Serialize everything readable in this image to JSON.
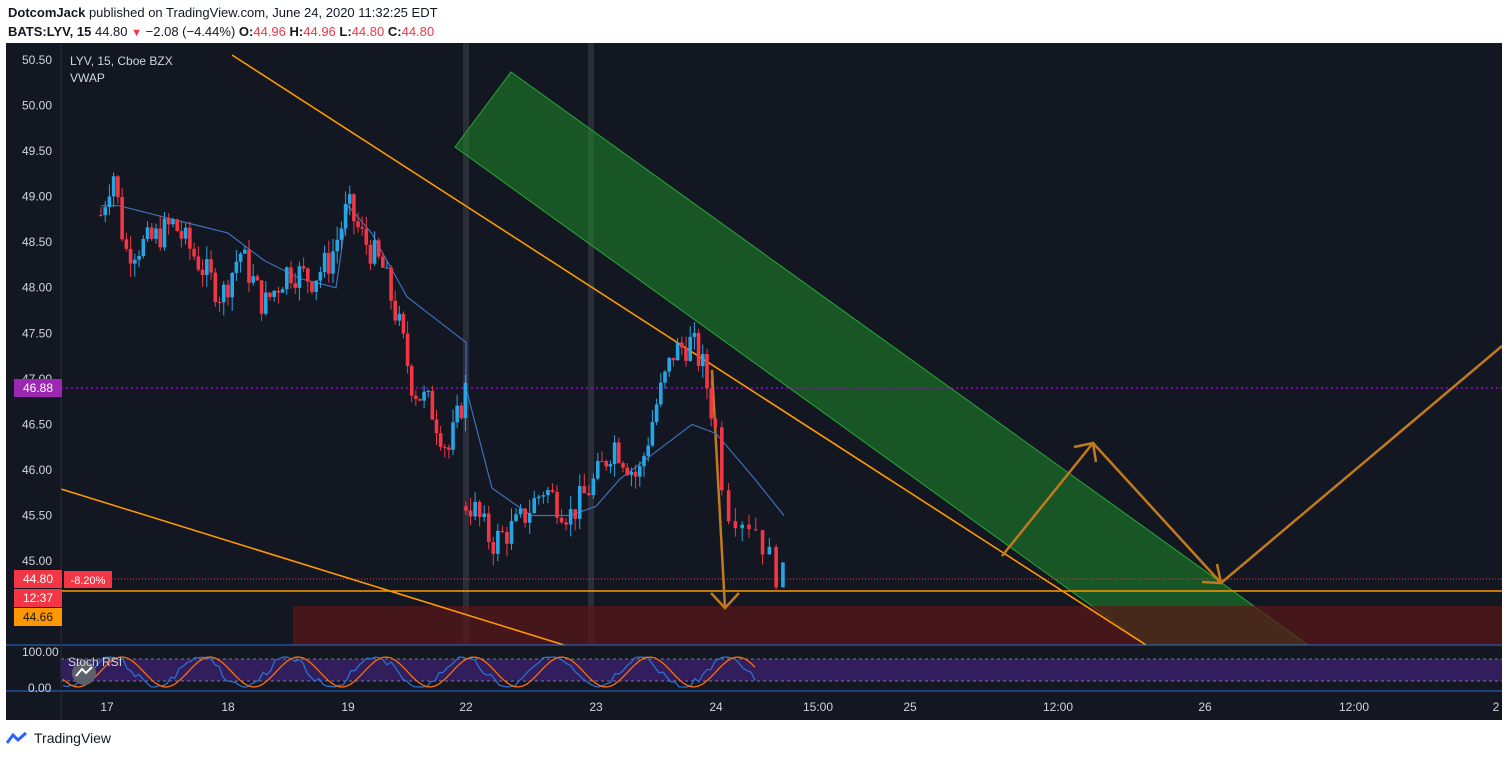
{
  "header": {
    "author": "DotcomJack",
    "published_text": "published on TradingView.com, June 24, 2020 11:32:25 EDT",
    "symbol": "BATS:LYV, 15",
    "last": "44.80",
    "change": "−2.08 (−4.44%)",
    "o_label": "O:",
    "o_value": "44.96",
    "h_label": "H:",
    "h_value": "44.96",
    "l_label": "L:",
    "l_value": "44.80",
    "c_label": "C:",
    "c_value": "44.80"
  },
  "legend": {
    "title": "LYV, 15, Cboe BZX",
    "indicator": "VWAP"
  },
  "stoch_label": "Stoch RSI",
  "badges": {
    "line_price": "46.88",
    "last_price": "44.80",
    "last_pct": "-8.20%",
    "countdown": "12:37",
    "support": "44.66"
  },
  "footer": {
    "brand": "TradingView"
  },
  "colors": {
    "background": "#131722",
    "up": "#26a5e4",
    "down": "#f23645",
    "trendline": "#ff9800",
    "channel": "#1f8a2a",
    "vwap": "#3f6fb6",
    "target_zone": "#5b1717",
    "arrows": "#c17a1c",
    "dotted_level": "#a000d6",
    "stoch_band": "#3b1f6d",
    "stoch_k": "#2a6fd1",
    "stoch_d": "#ff6d00"
  },
  "chart_data": {
    "type": "candlestick",
    "symbol": "LYV",
    "interval": "15",
    "exchange": "Cboe BZX",
    "y_ticks": [
      "50.50",
      "50.00",
      "49.50",
      "49.00",
      "48.50",
      "48.00",
      "47.50",
      "47.00",
      "46.50",
      "46.00",
      "45.50",
      "45.00"
    ],
    "x_ticks": [
      "17",
      "18",
      "19",
      "22",
      "23",
      "24",
      "15:00",
      "25",
      "12:00",
      "26",
      "12:00",
      "2"
    ],
    "ylim": [
      44.3,
      50.75
    ],
    "price_path": [
      {
        "day": 16.95,
        "price": 48.8
      },
      {
        "day": 17.05,
        "price": 49.3
      },
      {
        "day": 17.15,
        "price": 48.4
      },
      {
        "day": 17.35,
        "price": 48.5
      },
      {
        "day": 17.55,
        "price": 48.7
      },
      {
        "day": 17.75,
        "price": 48.3
      },
      {
        "day": 17.95,
        "price": 47.9
      },
      {
        "day": 18.1,
        "price": 48.4
      },
      {
        "day": 18.3,
        "price": 47.8
      },
      {
        "day": 18.5,
        "price": 48.2
      },
      {
        "day": 18.7,
        "price": 48.1
      },
      {
        "day": 18.85,
        "price": 48.3
      },
      {
        "day": 19.0,
        "price": 48.9
      },
      {
        "day": 19.1,
        "price": 48.6
      },
      {
        "day": 19.3,
        "price": 48.2
      },
      {
        "day": 19.45,
        "price": 47.5
      },
      {
        "day": 19.55,
        "price": 46.9
      },
      {
        "day": 19.7,
        "price": 46.7
      },
      {
        "day": 19.85,
        "price": 46.2
      },
      {
        "day": 20.0,
        "price": 46.9
      },
      {
        "day": 22.05,
        "price": 45.6
      },
      {
        "day": 22.2,
        "price": 45.2
      },
      {
        "day": 22.4,
        "price": 45.4
      },
      {
        "day": 22.6,
        "price": 45.8
      },
      {
        "day": 22.8,
        "price": 45.5
      },
      {
        "day": 23.0,
        "price": 45.9
      },
      {
        "day": 23.15,
        "price": 46.3
      },
      {
        "day": 23.35,
        "price": 45.9
      },
      {
        "day": 23.5,
        "price": 46.7
      },
      {
        "day": 23.65,
        "price": 47.3
      },
      {
        "day": 23.8,
        "price": 47.4
      },
      {
        "day": 23.9,
        "price": 47.1
      },
      {
        "day": 24.0,
        "price": 46.4
      },
      {
        "day": 24.05,
        "price": 45.6
      },
      {
        "day": 24.2,
        "price": 45.4
      },
      {
        "day": 24.3,
        "price": 44.9
      },
      {
        "day": 24.35,
        "price": 44.8
      }
    ],
    "vwap": [
      {
        "day": 16.95,
        "price": 48.9
      },
      {
        "day": 17.1,
        "price": 48.9
      },
      {
        "day": 17.4,
        "price": 48.8
      },
      {
        "day": 17.7,
        "price": 48.7
      },
      {
        "day": 18.0,
        "price": 48.6
      },
      {
        "day": 18.3,
        "price": 48.3
      },
      {
        "day": 18.6,
        "price": 48.1
      },
      {
        "day": 18.9,
        "price": 48.0
      },
      {
        "day": 19.0,
        "price": 48.9
      },
      {
        "day": 19.2,
        "price": 48.6
      },
      {
        "day": 19.5,
        "price": 47.9
      },
      {
        "day": 19.8,
        "price": 47.6
      },
      {
        "day": 20.0,
        "price": 47.4
      },
      {
        "day": 22.0,
        "price": 46.9
      },
      {
        "day": 22.2,
        "price": 45.8
      },
      {
        "day": 22.5,
        "price": 45.5
      },
      {
        "day": 22.8,
        "price": 45.5
      },
      {
        "day": 23.0,
        "price": 45.6
      },
      {
        "day": 23.2,
        "price": 45.9
      },
      {
        "day": 23.5,
        "price": 46.2
      },
      {
        "day": 23.8,
        "price": 46.5
      },
      {
        "day": 24.0,
        "price": 46.4
      },
      {
        "day": 24.2,
        "price": 45.9
      },
      {
        "day": 24.35,
        "price": 45.5
      }
    ],
    "levels": {
      "dotted": 46.88,
      "last": 44.8,
      "support": 44.66
    },
    "stoch_axis": [
      "100.00",
      "0.00"
    ]
  }
}
